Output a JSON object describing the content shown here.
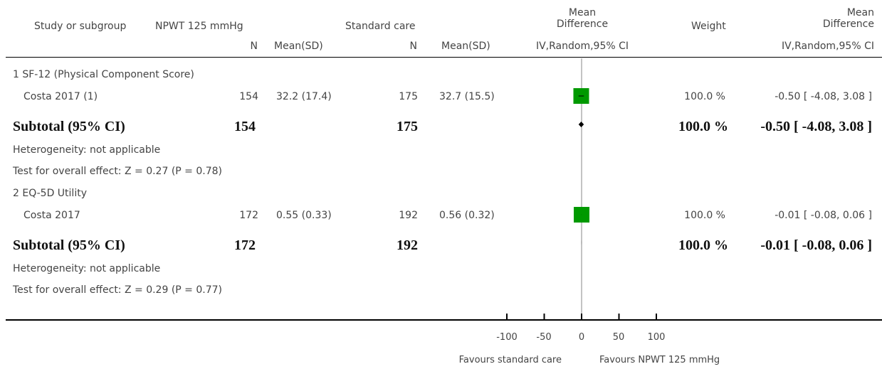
{
  "header": {
    "study": "Study or subgroup",
    "group1": "NPWT 125 mmHg",
    "group2": "Standard care",
    "md_line1": "Mean",
    "md_line2": "Difference",
    "weight": "Weight",
    "md2_line1": "Mean",
    "md2_line2": "Difference",
    "n1": "N",
    "mean1": "Mean(SD)",
    "n2": "N",
    "mean2": "Mean(SD)",
    "method1": "IV,Random,95% CI",
    "method2": "IV,Random,95% CI"
  },
  "subgroups": [
    {
      "title": "1 SF-12 (Physical Component Score)",
      "study": {
        "name": "Costa 2017 (1)",
        "n1": "154",
        "mean1": "32.2 (17.4)",
        "n2": "175",
        "mean2": "32.7 (15.5)",
        "weight": "100.0 %",
        "ci": "-0.50 [ -4.08, 3.08 ]"
      },
      "subtotal": {
        "label": "Subtotal (95% CI)",
        "n1": "154",
        "n2": "175",
        "weight": "100.0 %",
        "ci": "-0.50 [ -4.08, 3.08 ]"
      },
      "heterogeneity": "Heterogeneity: not applicable",
      "overall": "Test for overall effect: Z = 0.27 (P = 0.78)"
    },
    {
      "title": "2 EQ-5D Utility",
      "study": {
        "name": "Costa 2017",
        "n1": "172",
        "mean1": "0.55 (0.33)",
        "n2": "192",
        "mean2": "0.56 (0.32)",
        "weight": "100.0 %",
        "ci": "-0.01 [ -0.08, 0.06 ]"
      },
      "subtotal": {
        "label": "Subtotal (95% CI)",
        "n1": "172",
        "n2": "192",
        "weight": "100.0 %",
        "ci": "-0.01 [ -0.08, 0.06 ]"
      },
      "heterogeneity": "Heterogeneity: not applicable",
      "overall": "Test for overall effect: Z = 0.29 (P = 0.77)"
    }
  ],
  "axis": {
    "ticks": [
      "-100",
      "-50",
      "0",
      "50",
      "100"
    ],
    "favours_left": "Favours standard care",
    "favours_right": "Favours NPWT 125 mmHg"
  },
  "chart_data": {
    "type": "scatter",
    "xlim": [
      -100,
      100
    ],
    "xticks": [
      -100,
      -50,
      0,
      50,
      100
    ],
    "points": [
      {
        "series": "SF-12 (Physical Component Score)",
        "kind": "study",
        "estimate": -0.5,
        "lower": -4.08,
        "upper": 3.08,
        "weight": 100.0
      },
      {
        "series": "SF-12 (Physical Component Score)",
        "kind": "subtotal",
        "estimate": -0.5,
        "lower": -4.08,
        "upper": 3.08
      },
      {
        "series": "EQ-5D Utility",
        "kind": "study",
        "estimate": -0.01,
        "lower": -0.08,
        "upper": 0.06,
        "weight": 100.0
      },
      {
        "series": "EQ-5D Utility",
        "kind": "subtotal",
        "estimate": -0.01,
        "lower": -0.08,
        "upper": 0.06
      }
    ],
    "colors": {
      "study_marker": "#009900",
      "subtotal_marker": "#000000",
      "line": "#888888"
    }
  }
}
